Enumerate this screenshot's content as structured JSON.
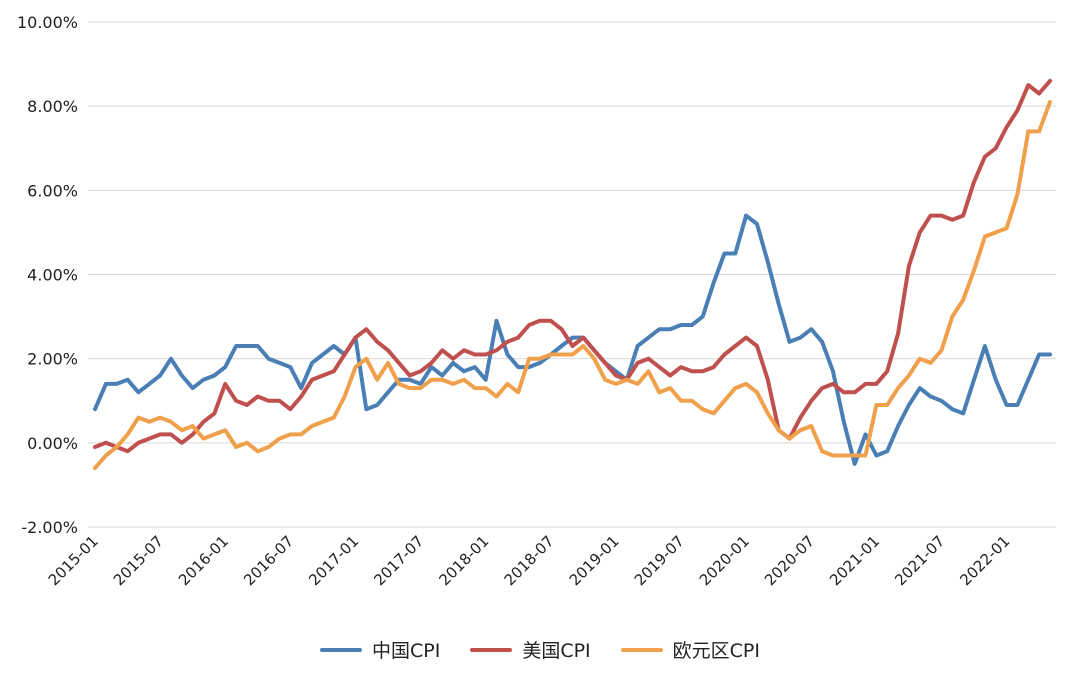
{
  "chart_data": {
    "type": "line",
    "title": "",
    "xlabel": "",
    "ylabel": "",
    "ylim": [
      -2,
      10
    ],
    "yticks": [
      -2,
      0,
      2,
      4,
      6,
      8,
      10
    ],
    "ytick_labels": [
      "-2.00%",
      "0.00%",
      "2.00%",
      "4.00%",
      "6.00%",
      "8.00%",
      "10.00%"
    ],
    "xtick_labels": [
      "2015-01",
      "2015-07",
      "2016-01",
      "2016-07",
      "2017-01",
      "2017-07",
      "2018-01",
      "2018-07",
      "2019-01",
      "2019-07",
      "2020-01",
      "2020-07",
      "2021-01",
      "2021-07",
      "2022-01"
    ],
    "start_month": "2015-01",
    "end_month": "2022-05",
    "grid": "horizontal",
    "legend_position": "bottom",
    "series": [
      {
        "name": "中国CPI",
        "color": "#4a7fb5",
        "values": [
          0.8,
          1.4,
          1.4,
          1.5,
          1.2,
          1.4,
          1.6,
          2.0,
          1.6,
          1.3,
          1.5,
          1.6,
          1.8,
          2.3,
          2.3,
          2.3,
          2.0,
          1.9,
          1.8,
          1.3,
          1.9,
          2.1,
          2.3,
          2.1,
          2.5,
          0.8,
          0.9,
          1.2,
          1.5,
          1.5,
          1.4,
          1.8,
          1.6,
          1.9,
          1.7,
          1.8,
          1.5,
          2.9,
          2.1,
          1.8,
          1.8,
          1.9,
          2.1,
          2.3,
          2.5,
          2.5,
          2.2,
          1.9,
          1.7,
          1.5,
          2.3,
          2.5,
          2.7,
          2.7,
          2.8,
          2.8,
          3.0,
          3.8,
          4.5,
          4.5,
          5.4,
          5.2,
          4.3,
          3.3,
          2.4,
          2.5,
          2.7,
          2.4,
          1.7,
          0.5,
          -0.5,
          0.2,
          -0.3,
          -0.2,
          0.4,
          0.9,
          1.3,
          1.1,
          1.0,
          0.8,
          0.7,
          1.5,
          2.3,
          1.5,
          0.9,
          0.9,
          1.5,
          2.1,
          2.1
        ]
      },
      {
        "name": "美国CPI",
        "color": "#c0504d",
        "values": [
          -0.1,
          0.0,
          -0.1,
          -0.2,
          0.0,
          0.1,
          0.2,
          0.2,
          0.0,
          0.2,
          0.5,
          0.7,
          1.4,
          1.0,
          0.9,
          1.1,
          1.0,
          1.0,
          0.8,
          1.1,
          1.5,
          1.6,
          1.7,
          2.1,
          2.5,
          2.7,
          2.4,
          2.2,
          1.9,
          1.6,
          1.7,
          1.9,
          2.2,
          2.0,
          2.2,
          2.1,
          2.1,
          2.2,
          2.4,
          2.5,
          2.8,
          2.9,
          2.9,
          2.7,
          2.3,
          2.5,
          2.2,
          1.9,
          1.6,
          1.5,
          1.9,
          2.0,
          1.8,
          1.6,
          1.8,
          1.7,
          1.7,
          1.8,
          2.1,
          2.3,
          2.5,
          2.3,
          1.5,
          0.3,
          0.1,
          0.6,
          1.0,
          1.3,
          1.4,
          1.2,
          1.2,
          1.4,
          1.4,
          1.7,
          2.6,
          4.2,
          5.0,
          5.4,
          5.4,
          5.3,
          5.4,
          6.2,
          6.8,
          7.0,
          7.5,
          7.9,
          8.5,
          8.3,
          8.6
        ]
      },
      {
        "name": "欧元区CPI",
        "color": "#f0a04b",
        "values": [
          -0.6,
          -0.3,
          -0.1,
          0.2,
          0.6,
          0.5,
          0.6,
          0.5,
          0.3,
          0.4,
          0.1,
          0.2,
          0.3,
          -0.1,
          0.0,
          -0.2,
          -0.1,
          0.1,
          0.2,
          0.2,
          0.4,
          0.5,
          0.6,
          1.1,
          1.8,
          2.0,
          1.5,
          1.9,
          1.4,
          1.3,
          1.3,
          1.5,
          1.5,
          1.4,
          1.5,
          1.3,
          1.3,
          1.1,
          1.4,
          1.2,
          2.0,
          2.0,
          2.1,
          2.1,
          2.1,
          2.3,
          2.0,
          1.5,
          1.4,
          1.5,
          1.4,
          1.7,
          1.2,
          1.3,
          1.0,
          1.0,
          0.8,
          0.7,
          1.0,
          1.3,
          1.4,
          1.2,
          0.7,
          0.3,
          0.1,
          0.3,
          0.4,
          -0.2,
          -0.3,
          -0.3,
          -0.3,
          -0.3,
          0.9,
          0.9,
          1.3,
          1.6,
          2.0,
          1.9,
          2.2,
          3.0,
          3.4,
          4.1,
          4.9,
          5.0,
          5.1,
          5.9,
          7.4,
          7.4,
          8.1
        ]
      }
    ]
  }
}
